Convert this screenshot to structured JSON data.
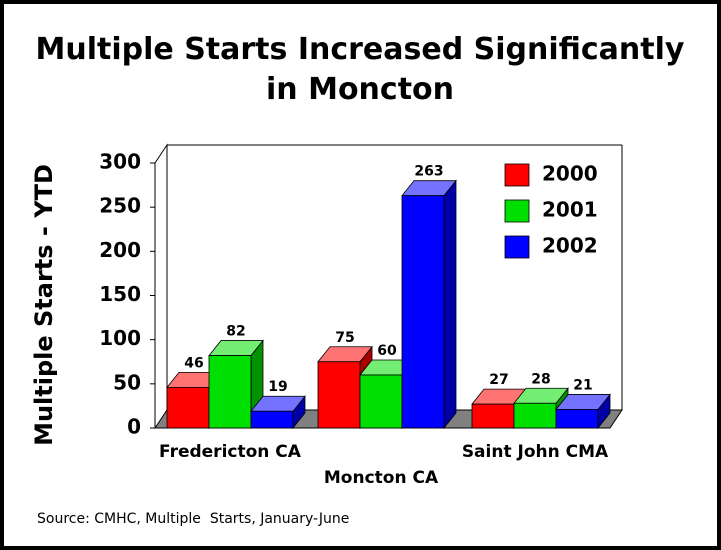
{
  "chart_data": {
    "type": "bar3d",
    "title": "Multiple Starts Increased Significantly in Moncton",
    "y_label": "Multiple Starts - YTD",
    "source": "Source: CMHC, Multiple  Starts, January-June",
    "categories": [
      "Fredericton CA",
      "Moncton CA",
      "Saint John CMA"
    ],
    "series": [
      {
        "name": "2000",
        "color": "#ff0000",
        "values": [
          46,
          75,
          27
        ]
      },
      {
        "name": "2001",
        "color": "#00e000",
        "values": [
          82,
          60,
          28
        ]
      },
      {
        "name": "2002",
        "color": "#0000ff",
        "values": [
          19,
          263,
          21
        ]
      }
    ],
    "ylim": [
      0,
      300
    ],
    "yticks": [
      0,
      50,
      100,
      150,
      200,
      250,
      300
    ],
    "legend": "top-right"
  }
}
